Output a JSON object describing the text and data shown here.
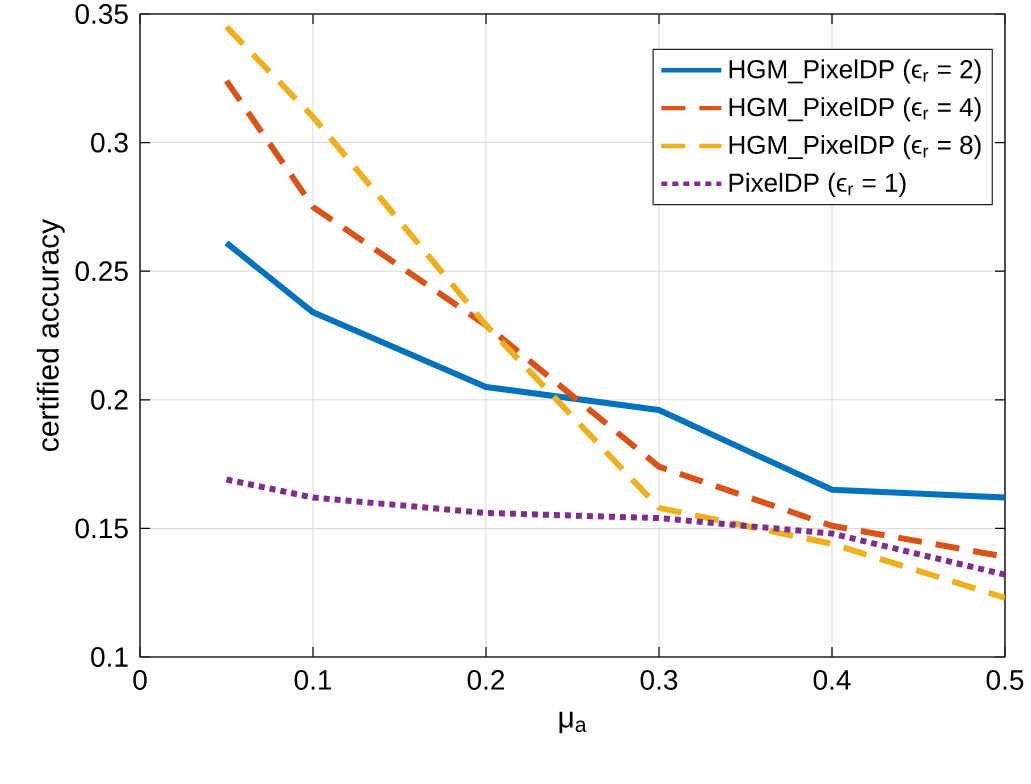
{
  "chart_data": {
    "type": "line",
    "xlabel": "μ$_{a}$",
    "ylabel": "certified accuracy",
    "x": [
      0.05,
      0.1,
      0.2,
      0.3,
      0.4,
      0.5
    ],
    "series": [
      {
        "name": "HGM_PixelDP (ϵ$_{r}$ = 2)",
        "color": "#0072bd",
        "line_style": "solid",
        "values": [
          0.261,
          0.234,
          0.205,
          0.196,
          0.165,
          0.162
        ]
      },
      {
        "name": "HGM_PixelDP (ϵ$_{r}$ = 4)",
        "color": "#d95319",
        "line_style": "dashed",
        "values": [
          0.324,
          0.275,
          0.229,
          0.174,
          0.151,
          0.139
        ]
      },
      {
        "name": "HGM_PixelDP (ϵ$_{r}$ = 8)",
        "color": "#edb120",
        "line_style": "dashed",
        "values": [
          0.345,
          0.31,
          0.229,
          0.158,
          0.144,
          0.123
        ]
      },
      {
        "name": "PixelDP (ϵ$_{r}$ = 1)",
        "color": "#7e2f8e",
        "line_style": "dotted",
        "values": [
          0.169,
          0.162,
          0.156,
          0.154,
          0.148,
          0.132
        ]
      }
    ],
    "xlim": [
      0,
      0.5
    ],
    "ylim": [
      0.1,
      0.35
    ],
    "xticks": [
      0,
      0.1,
      0.2,
      0.3,
      0.4,
      0.5
    ],
    "yticks": [
      0.1,
      0.15,
      0.2,
      0.25,
      0.3,
      0.35
    ],
    "grid": true,
    "legend": "top right"
  }
}
